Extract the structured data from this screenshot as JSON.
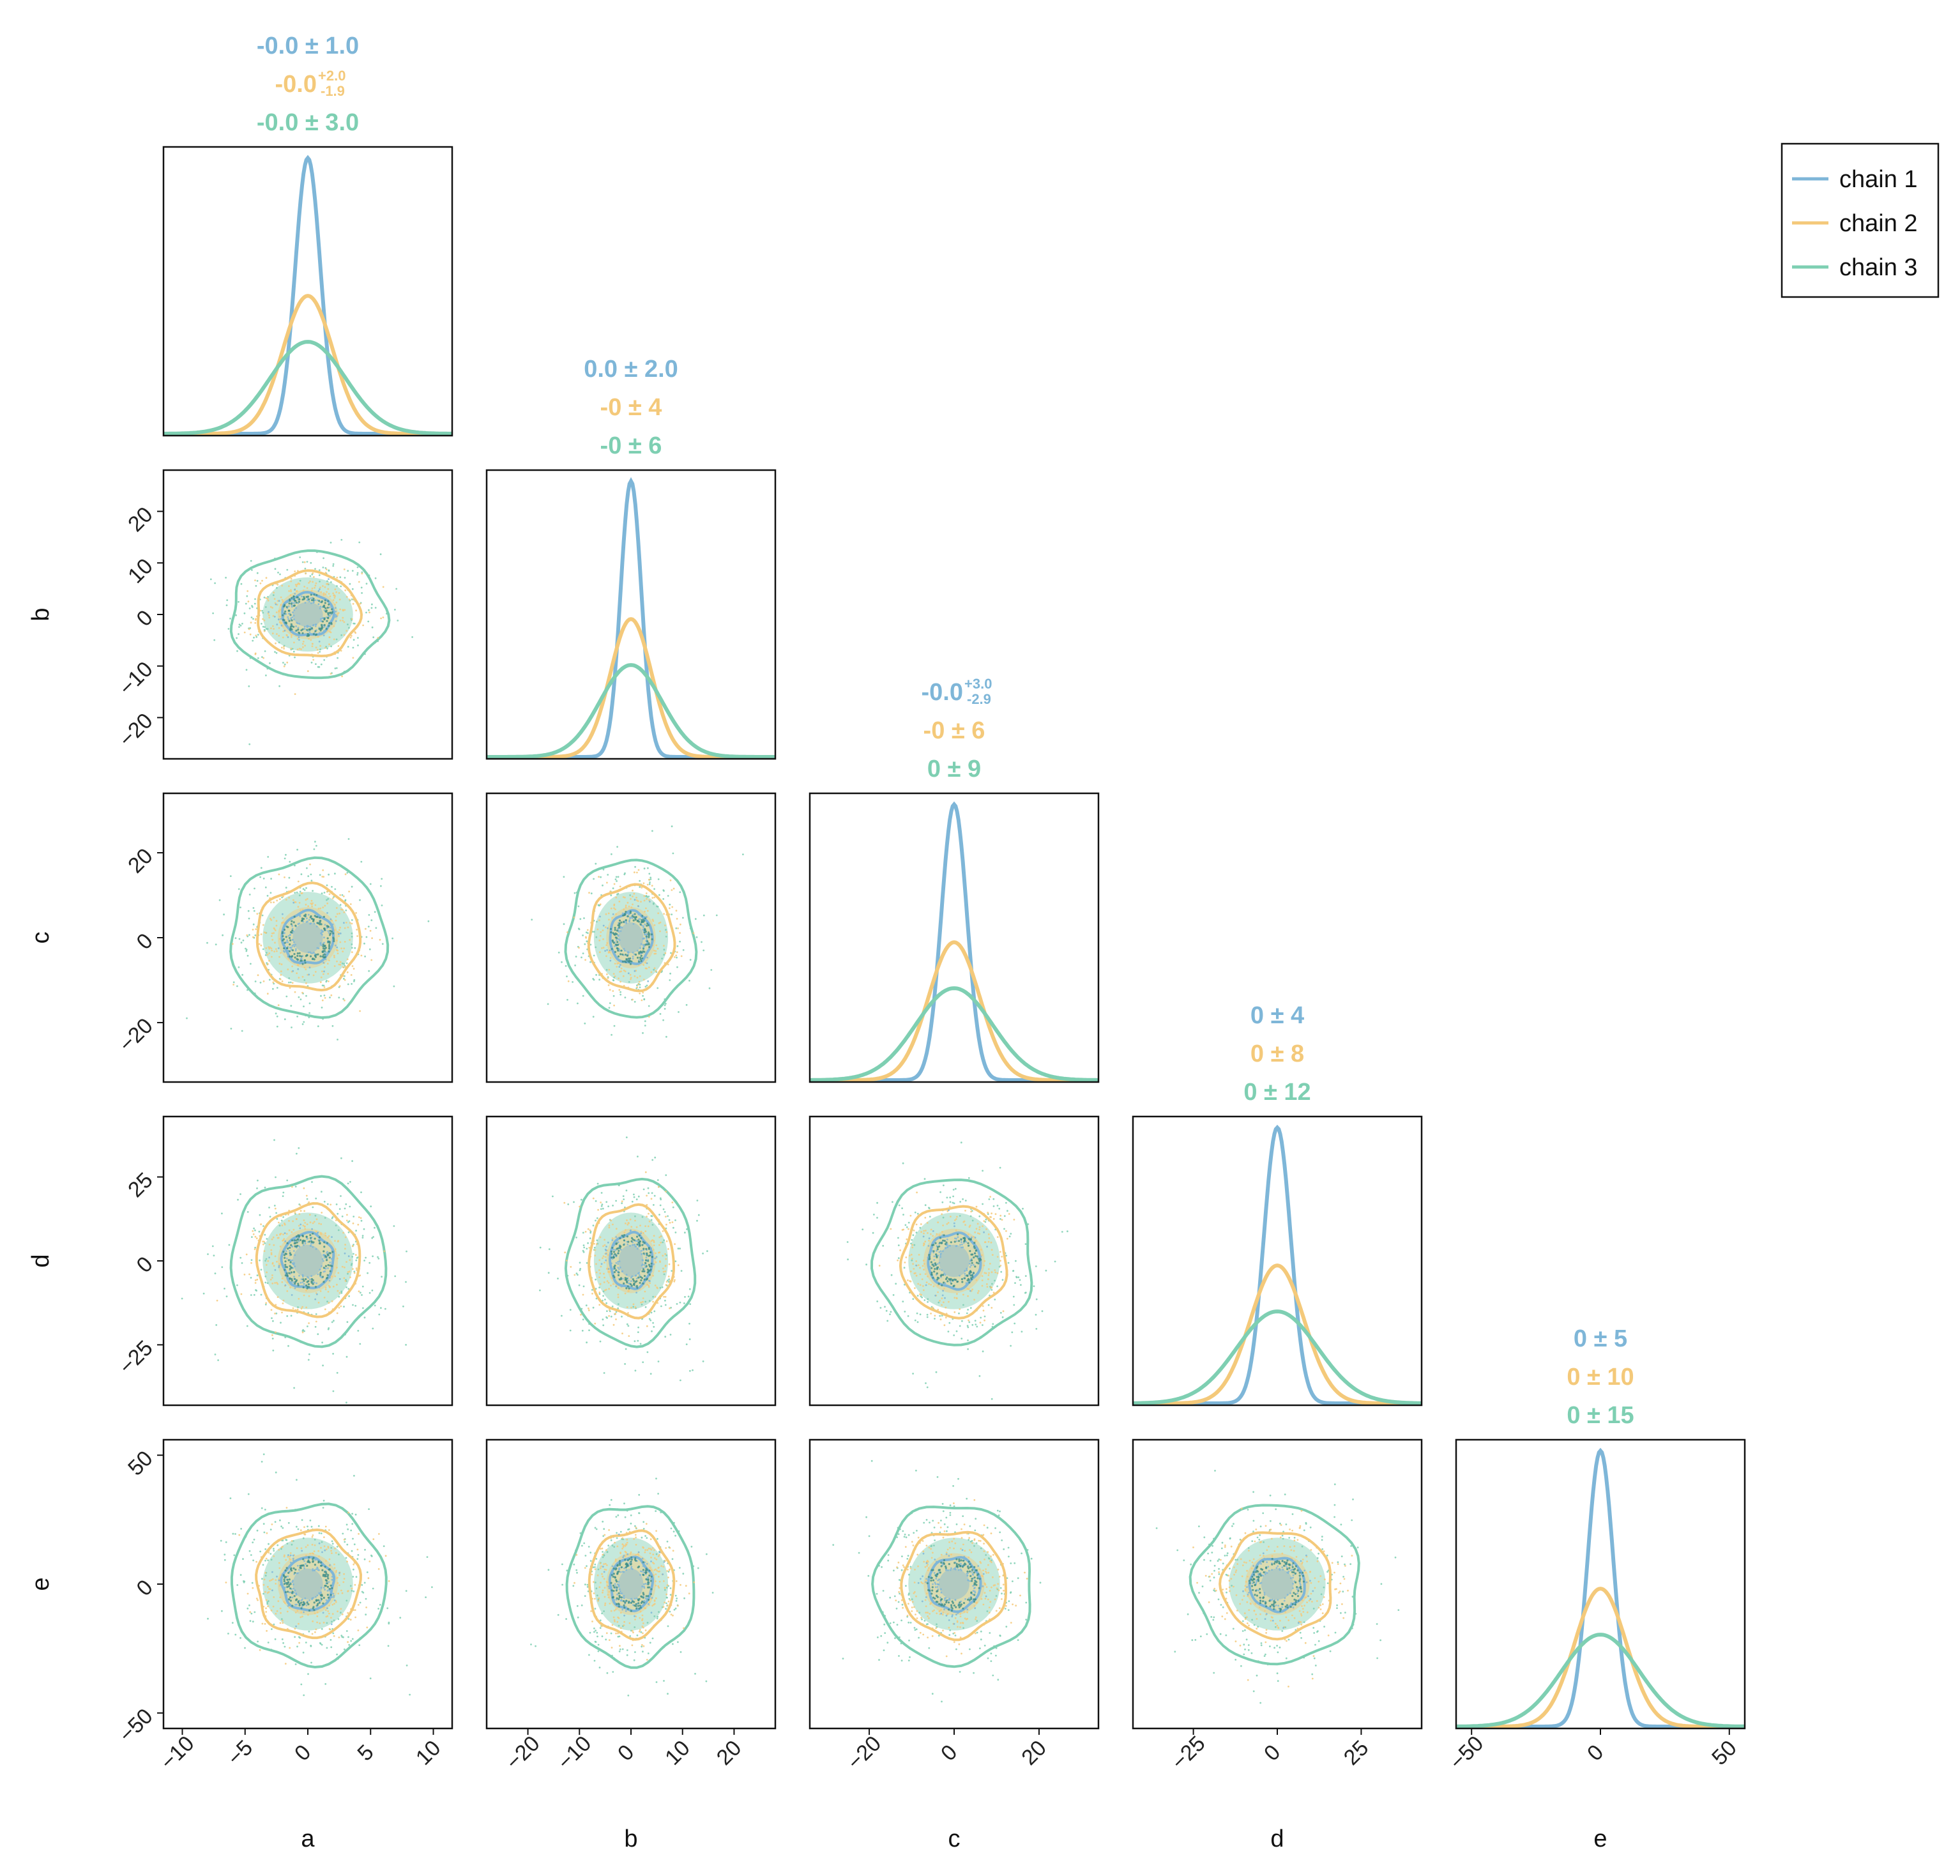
{
  "chart_data": {
    "type": "corner",
    "parameters": [
      "a",
      "b",
      "c",
      "d",
      "e"
    ],
    "sigma": {
      "chain 1": [
        1,
        2,
        3,
        4,
        5
      ],
      "chain 2": [
        2,
        4,
        6,
        8,
        10
      ],
      "chain 3": [
        3,
        6,
        9,
        12,
        15
      ]
    },
    "series": [
      {
        "name": "chain 1",
        "color": "#7eb6d8",
        "mean": [
          0,
          0,
          0,
          0,
          0
        ]
      },
      {
        "name": "chain 2",
        "color": "#f4c97a",
        "mean": [
          0,
          0,
          0,
          0,
          0
        ]
      },
      {
        "name": "chain 3",
        "color": "#7ecfb2",
        "mean": [
          0,
          0,
          0,
          0,
          0
        ]
      }
    ],
    "axis_ranges": [
      [
        -11.5,
        11.5
      ],
      [
        -28,
        28
      ],
      [
        -34,
        34
      ],
      [
        -43,
        43
      ],
      [
        -56,
        56
      ]
    ],
    "ticks": {
      "a": [
        "−10",
        "−5",
        "0",
        "5",
        "10"
      ],
      "b": [
        "−20",
        "−10",
        "0",
        "10",
        "20"
      ],
      "c": [
        "−20",
        "0",
        "20"
      ],
      "d": [
        "−25",
        "0",
        "25"
      ],
      "e": [
        "−50",
        "0",
        "50"
      ]
    },
    "tick_values": {
      "a": [
        -10,
        -5,
        0,
        5,
        10
      ],
      "b": [
        -20,
        -10,
        0,
        10,
        20
      ],
      "c": [
        -20,
        0,
        20
      ],
      "d": [
        -25,
        0,
        25
      ],
      "e": [
        -50,
        0,
        50
      ]
    },
    "diag_titles": [
      [
        {
          "main": "-0.0 ± 1.0"
        },
        {
          "main": "-0.0",
          "sup": "+2.0",
          "sub": "-1.9"
        },
        {
          "main": "-0.0 ± 3.0"
        }
      ],
      [
        {
          "main": "0.0 ± 2.0"
        },
        {
          "main": "-0 ± 4"
        },
        {
          "main": "-0 ± 6"
        }
      ],
      [
        {
          "main": "-0.0",
          "sup": "+3.0",
          "sub": "-2.9"
        },
        {
          "main": "-0 ± 6"
        },
        {
          "main": "0 ± 9"
        }
      ],
      [
        {
          "main": "0 ± 4"
        },
        {
          "main": "0 ± 8"
        },
        {
          "main": "0 ± 12"
        }
      ],
      [
        {
          "main": "0 ± 5"
        },
        {
          "main": "0 ± 10"
        },
        {
          "main": "0 ± 15"
        }
      ]
    ],
    "legend": {
      "entries": [
        "chain 1",
        "chain 2",
        "chain 3"
      ],
      "position": "top-right"
    },
    "grid": false
  }
}
